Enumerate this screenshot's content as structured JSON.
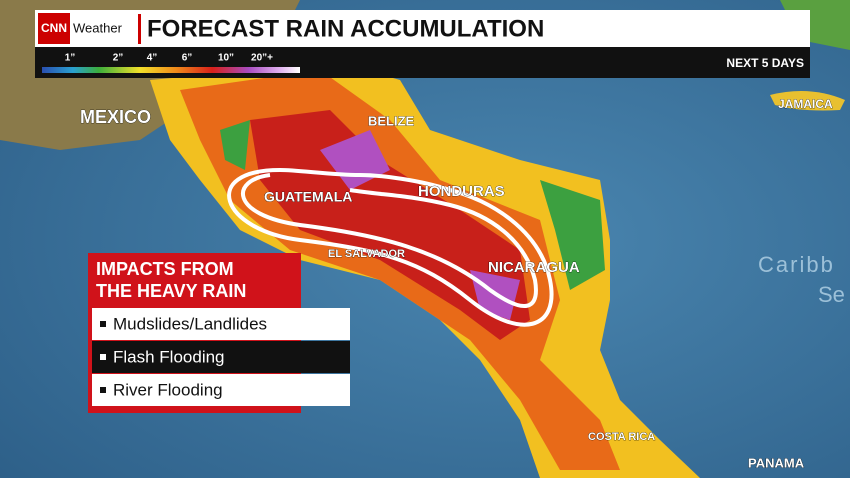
{
  "header": {
    "logo": "CNN",
    "section": "Weather",
    "title": "FORECAST RAIN ACCUMULATION",
    "period": "NEXT 5 DAYS"
  },
  "legend": {
    "labels": [
      "1”",
      "2”",
      "4”",
      "6”",
      "10”",
      "20”+"
    ]
  },
  "map_labels": {
    "mexico": "MEXICO",
    "belize": "BELIZE",
    "guatemala": "GUATEMALA",
    "honduras": "HONDURAS",
    "el_salvador": "EL SALVADOR",
    "nicaragua": "NICARAGUA",
    "costa_rica": "COSTA RICA",
    "panama": "PANAMA",
    "jamaica": "JAMAICA",
    "caribbean_1": "Caribb",
    "caribbean_2": "Se"
  },
  "impacts": {
    "title_1": "IMPACTS FROM",
    "title_2": "THE HEAVY RAIN",
    "items": [
      "Mudslides/Landlides",
      "Flash Flooding",
      "River Flooding"
    ]
  }
}
